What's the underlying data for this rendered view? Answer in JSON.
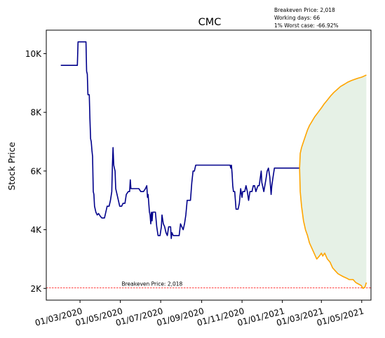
{
  "chart_data": {
    "type": "line",
    "title": "CMC",
    "xlabel": "",
    "ylabel": "Stock Price",
    "info_lines": [
      "Breakeven Price: 2,018",
      "Working days: 66",
      "1% Worst case: -66.92%"
    ],
    "breakeven": {
      "value": 2018,
      "label": "Breakeven Price: 2,018",
      "color": "#ff0000"
    },
    "ylim": [
      1600,
      10800
    ],
    "y_ticks": [
      2000,
      4000,
      6000,
      8000,
      10000
    ],
    "y_tick_labels": [
      "2K",
      "4K",
      "6K",
      "8K",
      "10K"
    ],
    "xlim": [
      "2020-01-10",
      "2021-05-15"
    ],
    "x_ticks": [
      "2020-03-01",
      "2020-05-01",
      "2020-07-01",
      "2020-09-01",
      "2020-11-01",
      "2021-01-01",
      "2021-03-01",
      "2021-05-01"
    ],
    "x_tick_labels": [
      "01/03/2020",
      "01/05/2020",
      "01/07/2020",
      "01/09/2020",
      "01/11/2020",
      "01/01/2021",
      "01/03/2021",
      "01/05/2021"
    ],
    "colors": {
      "history": "#00008b",
      "bounds": "#ffa500",
      "band": "#2e8b2e"
    },
    "series": [
      {
        "role": "history",
        "points": [
          [
            "2020-02-01",
            9600
          ],
          [
            "2020-02-12",
            9600
          ],
          [
            "2020-02-26",
            9600
          ],
          [
            "2020-02-27",
            10400
          ],
          [
            "2020-03-10",
            10400
          ],
          [
            "2020-03-11",
            9400
          ],
          [
            "2020-03-12",
            9300
          ],
          [
            "2020-03-13",
            8600
          ],
          [
            "2020-03-15",
            8600
          ],
          [
            "2020-03-16",
            7800
          ],
          [
            "2020-03-17",
            7100
          ],
          [
            "2020-03-18",
            7000
          ],
          [
            "2020-03-19",
            6700
          ],
          [
            "2020-03-20",
            6500
          ],
          [
            "2020-03-21",
            5300
          ],
          [
            "2020-03-22",
            5200
          ],
          [
            "2020-03-23",
            4800
          ],
          [
            "2020-03-25",
            4600
          ],
          [
            "2020-03-27",
            4500
          ],
          [
            "2020-03-29",
            4550
          ],
          [
            "2020-04-01",
            4450
          ],
          [
            "2020-04-03",
            4400
          ],
          [
            "2020-04-07",
            4400
          ],
          [
            "2020-04-09",
            4600
          ],
          [
            "2020-04-11",
            4800
          ],
          [
            "2020-04-14",
            4800
          ],
          [
            "2020-04-16",
            5000
          ],
          [
            "2020-04-18",
            5300
          ],
          [
            "2020-04-19",
            6200
          ],
          [
            "2020-04-20",
            6800
          ],
          [
            "2020-04-21",
            6200
          ],
          [
            "2020-04-22",
            6100
          ],
          [
            "2020-04-23",
            6000
          ],
          [
            "2020-04-24",
            5400
          ],
          [
            "2020-04-26",
            5200
          ],
          [
            "2020-04-28",
            5000
          ],
          [
            "2020-04-30",
            4800
          ],
          [
            "2020-05-03",
            4800
          ],
          [
            "2020-05-05",
            4900
          ],
          [
            "2020-05-08",
            4900
          ],
          [
            "2020-05-10",
            5200
          ],
          [
            "2020-05-13",
            5300
          ],
          [
            "2020-05-15",
            5300
          ],
          [
            "2020-05-16",
            5700
          ],
          [
            "2020-05-17",
            5400
          ],
          [
            "2020-05-20",
            5400
          ],
          [
            "2020-05-25",
            5400
          ],
          [
            "2020-05-29",
            5400
          ],
          [
            "2020-06-01",
            5300
          ],
          [
            "2020-06-05",
            5300
          ],
          [
            "2020-06-08",
            5400
          ],
          [
            "2020-06-10",
            5500
          ],
          [
            "2020-06-11",
            5100
          ],
          [
            "2020-06-12",
            5200
          ],
          [
            "2020-06-14",
            4600
          ],
          [
            "2020-06-15",
            4500
          ],
          [
            "2020-06-16",
            4200
          ],
          [
            "2020-06-17",
            4600
          ],
          [
            "2020-06-18",
            4300
          ],
          [
            "2020-06-19",
            4600
          ],
          [
            "2020-06-23",
            4600
          ],
          [
            "2020-06-25",
            4100
          ],
          [
            "2020-06-27",
            3800
          ],
          [
            "2020-06-30",
            3800
          ],
          [
            "2020-07-02",
            4100
          ],
          [
            "2020-07-03",
            4500
          ],
          [
            "2020-07-05",
            4200
          ],
          [
            "2020-07-07",
            4100
          ],
          [
            "2020-07-09",
            3900
          ],
          [
            "2020-07-11",
            3800
          ],
          [
            "2020-07-13",
            4100
          ],
          [
            "2020-07-16",
            4100
          ],
          [
            "2020-07-17",
            3700
          ],
          [
            "2020-07-18",
            3900
          ],
          [
            "2020-07-20",
            3800
          ],
          [
            "2020-07-25",
            3800
          ],
          [
            "2020-07-29",
            3800
          ],
          [
            "2020-07-31",
            4200
          ],
          [
            "2020-08-02",
            4100
          ],
          [
            "2020-08-04",
            4000
          ],
          [
            "2020-08-06",
            4200
          ],
          [
            "2020-08-08",
            4500
          ],
          [
            "2020-08-10",
            5000
          ],
          [
            "2020-08-12",
            5000
          ],
          [
            "2020-08-15",
            5000
          ],
          [
            "2020-08-17",
            5600
          ],
          [
            "2020-08-19",
            6000
          ],
          [
            "2020-08-21",
            6000
          ],
          [
            "2020-08-23",
            6200
          ],
          [
            "2020-09-05",
            6200
          ],
          [
            "2020-09-20",
            6200
          ],
          [
            "2020-10-05",
            6200
          ],
          [
            "2020-10-14",
            6200
          ],
          [
            "2020-10-15",
            6100
          ],
          [
            "2020-10-16",
            6200
          ],
          [
            "2020-10-17",
            5900
          ],
          [
            "2020-10-18",
            5500
          ],
          [
            "2020-10-19",
            5300
          ],
          [
            "2020-10-21",
            5300
          ],
          [
            "2020-10-23",
            4700
          ],
          [
            "2020-10-26",
            4700
          ],
          [
            "2020-10-28",
            4900
          ],
          [
            "2020-10-30",
            5400
          ],
          [
            "2020-11-01",
            5100
          ],
          [
            "2020-11-02",
            5300
          ],
          [
            "2020-11-05",
            5300
          ],
          [
            "2020-11-07",
            5500
          ],
          [
            "2020-11-09",
            5300
          ],
          [
            "2020-11-11",
            5000
          ],
          [
            "2020-11-13",
            5300
          ],
          [
            "2020-11-16",
            5300
          ],
          [
            "2020-11-18",
            5500
          ],
          [
            "2020-11-20",
            5500
          ],
          [
            "2020-11-22",
            5300
          ],
          [
            "2020-11-25",
            5500
          ],
          [
            "2020-11-27",
            5500
          ],
          [
            "2020-11-30",
            6000
          ],
          [
            "2020-12-01",
            5600
          ],
          [
            "2020-12-02",
            5500
          ],
          [
            "2020-12-04",
            5300
          ],
          [
            "2020-12-07",
            5700
          ],
          [
            "2020-12-09",
            6000
          ],
          [
            "2020-12-11",
            6100
          ],
          [
            "2020-12-13",
            5800
          ],
          [
            "2020-12-15",
            5200
          ],
          [
            "2020-12-16",
            5500
          ],
          [
            "2020-12-18",
            5800
          ],
          [
            "2020-12-20",
            6100
          ],
          [
            "2020-12-25",
            6100
          ],
          [
            "2020-12-30",
            6100
          ],
          [
            "2021-01-04",
            6100
          ],
          [
            "2021-01-10",
            6100
          ],
          [
            "2021-01-20",
            6100
          ],
          [
            "2021-01-27",
            6100
          ]
        ]
      },
      {
        "role": "upper",
        "points": [
          [
            "2021-01-27",
            6100
          ],
          [
            "2021-01-28",
            6600
          ],
          [
            "2021-01-30",
            6800
          ],
          [
            "2021-02-02",
            7000
          ],
          [
            "2021-02-05",
            7200
          ],
          [
            "2021-02-08",
            7400
          ],
          [
            "2021-02-11",
            7550
          ],
          [
            "2021-02-15",
            7700
          ],
          [
            "2021-02-19",
            7850
          ],
          [
            "2021-02-24",
            8000
          ],
          [
            "2021-03-01",
            8150
          ],
          [
            "2021-03-05",
            8280
          ],
          [
            "2021-03-10",
            8420
          ],
          [
            "2021-03-15",
            8560
          ],
          [
            "2021-03-20",
            8680
          ],
          [
            "2021-03-25",
            8780
          ],
          [
            "2021-03-30",
            8880
          ],
          [
            "2021-04-05",
            8960
          ],
          [
            "2021-04-10",
            9030
          ],
          [
            "2021-04-15",
            9080
          ],
          [
            "2021-04-20",
            9120
          ],
          [
            "2021-04-25",
            9160
          ],
          [
            "2021-05-01",
            9200
          ],
          [
            "2021-05-05",
            9240
          ],
          [
            "2021-05-08",
            9270
          ]
        ]
      },
      {
        "role": "lower",
        "points": [
          [
            "2021-01-27",
            6100
          ],
          [
            "2021-01-28",
            5300
          ],
          [
            "2021-01-30",
            4800
          ],
          [
            "2021-02-02",
            4300
          ],
          [
            "2021-02-05",
            4000
          ],
          [
            "2021-02-08",
            3800
          ],
          [
            "2021-02-11",
            3550
          ],
          [
            "2021-02-15",
            3350
          ],
          [
            "2021-02-19",
            3150
          ],
          [
            "2021-02-22",
            3000
          ],
          [
            "2021-02-26",
            3100
          ],
          [
            "2021-03-01",
            3200
          ],
          [
            "2021-03-03",
            3100
          ],
          [
            "2021-03-06",
            3200
          ],
          [
            "2021-03-10",
            3000
          ],
          [
            "2021-03-14",
            2900
          ],
          [
            "2021-03-18",
            2700
          ],
          [
            "2021-03-22",
            2600
          ],
          [
            "2021-03-26",
            2500
          ],
          [
            "2021-03-30",
            2450
          ],
          [
            "2021-04-03",
            2400
          ],
          [
            "2021-04-08",
            2350
          ],
          [
            "2021-04-12",
            2300
          ],
          [
            "2021-04-18",
            2300
          ],
          [
            "2021-04-22",
            2200
          ],
          [
            "2021-04-26",
            2150
          ],
          [
            "2021-04-30",
            2100
          ],
          [
            "2021-05-03",
            2000
          ],
          [
            "2021-05-06",
            2050
          ],
          [
            "2021-05-08",
            2200
          ]
        ]
      }
    ]
  }
}
